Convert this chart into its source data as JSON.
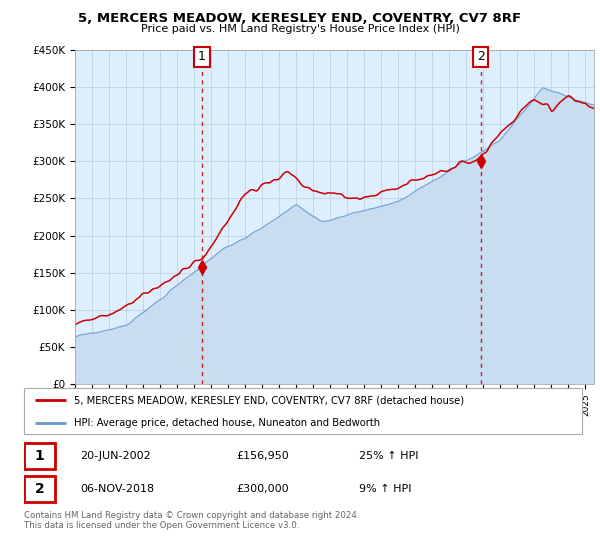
{
  "title": "5, MERCERS MEADOW, KERESLEY END, COVENTRY, CV7 8RF",
  "subtitle": "Price paid vs. HM Land Registry's House Price Index (HPI)",
  "ylim": [
    0,
    450000
  ],
  "yticks": [
    0,
    50000,
    100000,
    150000,
    200000,
    250000,
    300000,
    350000,
    400000,
    450000
  ],
  "ytick_labels": [
    "£0",
    "£50K",
    "£100K",
    "£150K",
    "£200K",
    "£250K",
    "£300K",
    "£350K",
    "£400K",
    "£450K"
  ],
  "legend_line1": "5, MERCERS MEADOW, KERESLEY END, COVENTRY, CV7 8RF (detached house)",
  "legend_line2": "HPI: Average price, detached house, Nuneaton and Bedworth",
  "sale1_date": "20-JUN-2002",
  "sale1_price": "£156,950",
  "sale1_hpi": "25% ↑ HPI",
  "sale1_year": 2002.46,
  "sale1_value": 156950,
  "sale2_date": "06-NOV-2018",
  "sale2_price": "£300,000",
  "sale2_hpi": "9% ↑ HPI",
  "sale2_year": 2018.84,
  "sale2_value": 300000,
  "footer": "Contains HM Land Registry data © Crown copyright and database right 2024.\nThis data is licensed under the Open Government Licence v3.0.",
  "line_color_property": "#cc0000",
  "line_color_hpi": "#6699cc",
  "fill_color_hpi": "#c8ddf0",
  "marker_color": "#cc0000",
  "vline_color": "#cc0000",
  "plot_bg_color": "#ddeeff",
  "grid_color": "#bbccdd",
  "xlim_start": 1995,
  "xlim_end": 2025.5
}
